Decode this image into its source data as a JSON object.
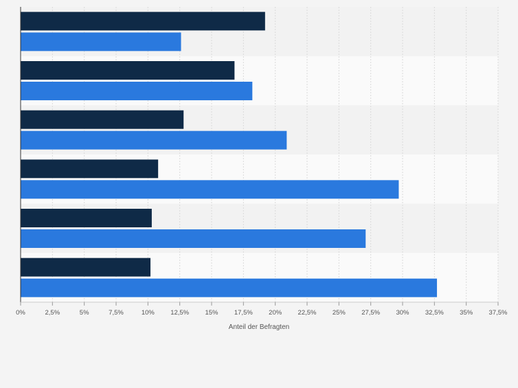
{
  "chart_data": {
    "type": "bar",
    "orientation": "horizontal",
    "categories": [
      "",
      "",
      "",
      "",
      "",
      ""
    ],
    "series": [
      {
        "color": "#0f2a47",
        "values": [
          19.2,
          16.8,
          12.8,
          10.8,
          10.3,
          10.2
        ]
      },
      {
        "color": "#2a79de",
        "values": [
          12.6,
          18.2,
          20.9,
          29.7,
          27.1,
          32.7
        ]
      }
    ],
    "xlim": [
      0,
      37.5
    ],
    "ticks": [
      "0%",
      "2,5%",
      "5%",
      "7,5%",
      "10%",
      "12,5%",
      "15%",
      "17,5%",
      "20%",
      "22,5%",
      "25%",
      "27,5%",
      "30%",
      "32,5%",
      "35%",
      "37,5%"
    ],
    "xlabel": "Anteil der Befragten",
    "grid": true,
    "legend": "none"
  }
}
